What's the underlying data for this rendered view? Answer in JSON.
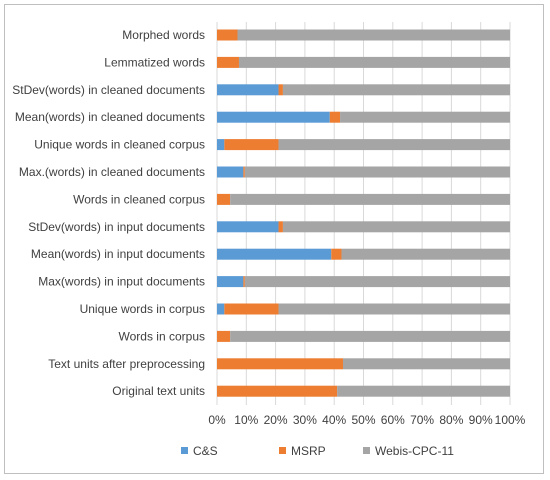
{
  "chart_data": {
    "type": "bar",
    "orientation": "horizontal",
    "stacked": "percent",
    "categories": [
      "Morphed words",
      "Lemmatized words",
      "StDev(words) in cleaned documents",
      "Mean(words) in cleaned documents",
      "Unique words in cleaned corpus",
      "Max.(words) in cleaned documents",
      "Words in cleaned corpus",
      "StDev(words) in input documents",
      "Mean(words) in input documents",
      "Max(words) in input documents",
      "Unique words in corpus",
      "Words in corpus",
      "Text units after preprocessing",
      "Original text units"
    ],
    "series": [
      {
        "name": "C&S",
        "color": "#5b9bd5",
        "values": [
          0.0,
          0.0,
          0.21,
          0.385,
          0.025,
          0.09,
          0.0,
          0.21,
          0.39,
          0.09,
          0.025,
          0.0,
          0.0,
          0.0
        ]
      },
      {
        "name": "MSRP",
        "color": "#ed7d31",
        "values": [
          0.07,
          0.075,
          0.015,
          0.035,
          0.185,
          0.005,
          0.045,
          0.015,
          0.035,
          0.005,
          0.185,
          0.045,
          0.43,
          0.41
        ]
      },
      {
        "name": "Webis-CPC-11",
        "color": "#a5a5a5",
        "values": [
          0.93,
          0.925,
          0.775,
          0.58,
          0.79,
          0.905,
          0.955,
          0.775,
          0.575,
          0.905,
          0.79,
          0.955,
          0.57,
          0.59
        ]
      }
    ],
    "xlim": [
      0,
      1
    ],
    "xticks": [
      "0%",
      "10%",
      "20%",
      "30%",
      "40%",
      "50%",
      "60%",
      "70%",
      "80%",
      "90%",
      "100%"
    ],
    "xlabel": "",
    "ylabel": "",
    "title": "",
    "grid": "vertical",
    "legend": "bottom"
  }
}
